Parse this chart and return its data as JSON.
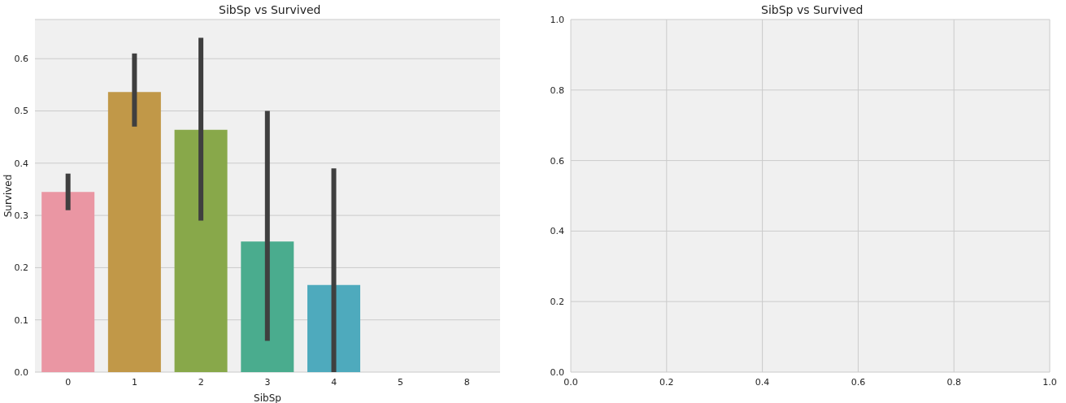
{
  "chart_data": [
    {
      "type": "bar",
      "title": "SibSp vs Survived",
      "xlabel": "SibSp",
      "ylabel": "Survived",
      "categories": [
        "0",
        "1",
        "2",
        "3",
        "4",
        "5",
        "8"
      ],
      "values": [
        0.345,
        0.536,
        0.464,
        0.25,
        0.167,
        0,
        0
      ],
      "errors": [
        [
          0.31,
          0.38
        ],
        [
          0.47,
          0.61
        ],
        [
          0.29,
          0.64
        ],
        [
          0.06,
          0.5
        ],
        [
          0,
          0.39
        ],
        null,
        null
      ],
      "colors": [
        "#ea96a3",
        "#c19848",
        "#88a84a",
        "#4aac8e",
        "#4eaabd",
        "#8ea5e0",
        "#d48fd6"
      ],
      "ylim": [
        0,
        0.675
      ],
      "yticks": [
        {
          "value": 0,
          "label": "0.0"
        },
        {
          "value": 0.1,
          "label": "0.1"
        },
        {
          "value": 0.2,
          "label": "0.2"
        },
        {
          "value": 0.3,
          "label": "0.3"
        },
        {
          "value": 0.4,
          "label": "0.4"
        },
        {
          "value": 0.5,
          "label": "0.5"
        },
        {
          "value": 0.6,
          "label": "0.6"
        }
      ],
      "grid": "y"
    },
    {
      "type": "scatter",
      "title": "SibSp vs Survived",
      "xlim": [
        0,
        1
      ],
      "ylim": [
        0,
        1
      ],
      "xticks": [
        {
          "value": 0,
          "label": "0.0"
        },
        {
          "value": 0.2,
          "label": "0.2"
        },
        {
          "value": 0.4,
          "label": "0.4"
        },
        {
          "value": 0.6,
          "label": "0.6"
        },
        {
          "value": 0.8,
          "label": "0.8"
        },
        {
          "value": 1,
          "label": "1.0"
        }
      ],
      "yticks": [
        {
          "value": 0,
          "label": "0.0"
        },
        {
          "value": 0.2,
          "label": "0.2"
        },
        {
          "value": 0.4,
          "label": "0.4"
        },
        {
          "value": 0.6,
          "label": "0.6"
        },
        {
          "value": 0.8,
          "label": "0.8"
        },
        {
          "value": 1,
          "label": "1.0"
        }
      ],
      "grid": true
    }
  ]
}
